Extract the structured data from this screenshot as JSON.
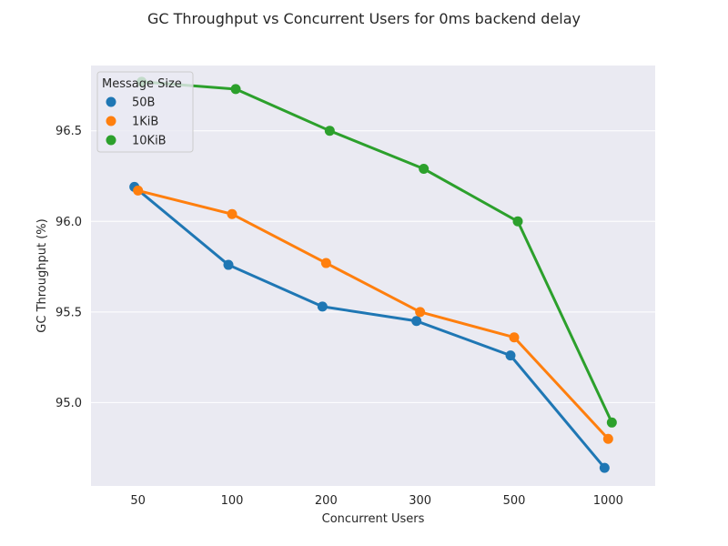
{
  "chart_data": {
    "type": "line",
    "title": "GC Throughput vs Concurrent Users for 0ms backend delay",
    "xlabel": "Concurrent Users",
    "ylabel": "GC Throughput (%)",
    "categories": [
      "50",
      "100",
      "200",
      "300",
      "500",
      "1000"
    ],
    "ylim": [
      94.54,
      96.86
    ],
    "yticks": [
      "95.0",
      "95.5",
      "96.0",
      "96.5"
    ],
    "ytick_values": [
      95.0,
      95.5,
      96.0,
      96.5
    ],
    "grid": true,
    "legend": {
      "title": "Message Size",
      "placement": "top-left"
    },
    "series": [
      {
        "name": "50B",
        "color": "#1f77b4",
        "values": [
          96.19,
          95.76,
          95.53,
          95.45,
          95.26,
          94.64
        ]
      },
      {
        "name": "1KiB",
        "color": "#ff7f0e",
        "values": [
          96.17,
          96.04,
          95.77,
          95.5,
          95.36,
          94.8
        ]
      },
      {
        "name": "10KiB",
        "color": "#2ca02c",
        "values": [
          96.77,
          96.73,
          96.5,
          96.29,
          96.0,
          94.89
        ]
      }
    ]
  }
}
